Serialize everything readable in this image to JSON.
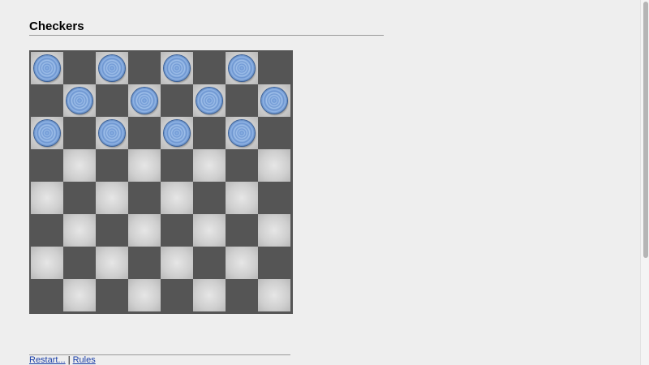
{
  "header": {
    "title": "Checkers"
  },
  "board": {
    "size": 8,
    "pieces": [
      {
        "row": 0,
        "col": 0,
        "color": "blue"
      },
      {
        "row": 0,
        "col": 2,
        "color": "blue"
      },
      {
        "row": 0,
        "col": 4,
        "color": "blue"
      },
      {
        "row": 0,
        "col": 6,
        "color": "blue"
      },
      {
        "row": 1,
        "col": 1,
        "color": "blue"
      },
      {
        "row": 1,
        "col": 3,
        "color": "blue"
      },
      {
        "row": 1,
        "col": 5,
        "color": "blue"
      },
      {
        "row": 1,
        "col": 7,
        "color": "blue"
      },
      {
        "row": 2,
        "col": 0,
        "color": "blue"
      },
      {
        "row": 2,
        "col": 2,
        "color": "blue"
      },
      {
        "row": 2,
        "col": 4,
        "color": "blue"
      },
      {
        "row": 2,
        "col": 6,
        "color": "blue"
      }
    ]
  },
  "footer": {
    "restart_label": "Restart...",
    "separator": "|",
    "rules_label": "Rules"
  },
  "colors": {
    "board_dark": "#555555",
    "piece_blue": "#6f98d4",
    "link": "#1a3fa8"
  }
}
